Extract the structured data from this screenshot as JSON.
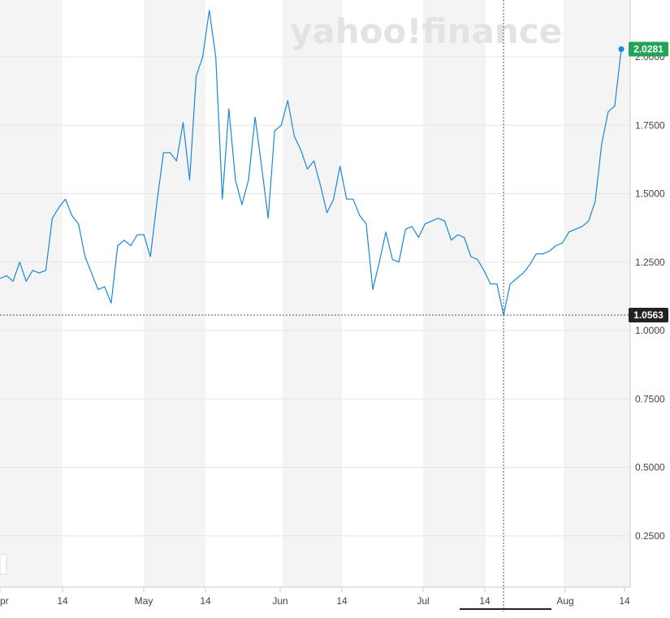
{
  "watermark": "yahoo!finance",
  "colors": {
    "line": "#1a87d9",
    "last_badge": "#22a35a",
    "crosshair_badge": "#222222",
    "band": "#f4f4f5",
    "grid": "#e6e6e6"
  },
  "chart_data": {
    "type": "line",
    "title": "",
    "xlabel": "",
    "ylabel": "",
    "ylim": [
      0,
      2.1
    ],
    "grid": true,
    "y_ticks": [
      "0.2500",
      "0.5000",
      "0.7500",
      "1.0000",
      "1.2500",
      "1.5000",
      "1.7500",
      "2.0000"
    ],
    "x_ticks": [
      "pr",
      "14",
      "May",
      "14",
      "Jun",
      "14",
      "Jul",
      "14",
      "Aug",
      "14"
    ],
    "last_value_label": "2.0281",
    "crosshair_value_label": "1.0563",
    "series": [
      {
        "values": [
          1.19,
          1.2,
          1.18,
          1.25,
          1.18,
          1.22,
          1.21,
          1.22,
          1.41,
          1.45,
          1.48,
          1.42,
          1.39,
          1.27,
          1.21,
          1.15,
          1.16,
          1.1,
          1.31,
          1.33,
          1.31,
          1.35,
          1.35,
          1.27,
          1.47,
          1.65,
          1.65,
          1.62,
          1.76,
          1.55,
          1.93,
          2.0,
          2.17,
          2.0,
          1.48,
          1.81,
          1.55,
          1.46,
          1.55,
          1.78,
          1.6,
          1.41,
          1.73,
          1.75,
          1.84,
          1.71,
          1.66,
          1.59,
          1.62,
          1.53,
          1.43,
          1.48,
          1.6,
          1.48,
          1.48,
          1.42,
          1.39,
          1.15,
          1.25,
          1.36,
          1.26,
          1.25,
          1.37,
          1.38,
          1.34,
          1.39,
          1.4,
          1.41,
          1.4,
          1.33,
          1.35,
          1.34,
          1.27,
          1.26,
          1.22,
          1.17,
          1.17,
          1.0563,
          1.17,
          1.19,
          1.21,
          1.24,
          1.28,
          1.28,
          1.29,
          1.31,
          1.32,
          1.36,
          1.37,
          1.38,
          1.4,
          1.47,
          1.68,
          1.8,
          1.82,
          2.0281
        ]
      }
    ]
  }
}
